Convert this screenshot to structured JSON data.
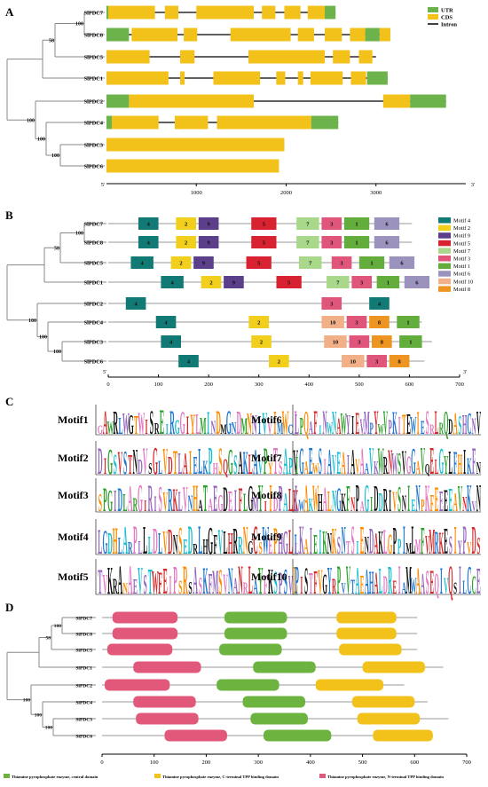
{
  "panels": {
    "A": {
      "letter": "A",
      "genes": [
        "SlPDC7",
        "SlPDC8",
        "SlPDC5",
        "SlPDC1",
        "SlPDC2",
        "SlPDC4",
        "SlPDC3",
        "SlPDC6"
      ],
      "bootstrap": [
        "100",
        "58",
        "100",
        "100",
        "100"
      ],
      "legend": [
        {
          "label": "UTR",
          "color": "#6db34b"
        },
        {
          "label": "CDS",
          "color": "#f2c21b"
        },
        {
          "label": "Intron",
          "color": "#000000"
        }
      ],
      "axis": {
        "min": 0,
        "max": 4000,
        "ticks": [
          "0",
          "1000",
          "2000",
          "3000",
          "4000"
        ],
        "end5": "5'",
        "end3": "3'"
      },
      "structures": [
        {
          "span": [
            0,
            2550
          ],
          "utr": [
            [
              0,
              20
            ],
            [
              2430,
              2550
            ]
          ],
          "cds": [
            [
              20,
              540
            ],
            [
              650,
              800
            ],
            [
              1000,
              1640
            ],
            [
              1730,
              1880
            ],
            [
              1980,
              2160
            ],
            [
              2240,
              2430
            ]
          ]
        },
        {
          "span": [
            0,
            3160
          ],
          "utr": [
            [
              0,
              250
            ],
            [
              2880,
              3040
            ]
          ],
          "cds": [
            [
              280,
              790
            ],
            [
              860,
              1010
            ],
            [
              1380,
              2050
            ],
            [
              2130,
              2310
            ],
            [
              2430,
              2620
            ],
            [
              2710,
              2880
            ],
            [
              3040,
              3160
            ]
          ]
        },
        {
          "span": [
            0,
            3000
          ],
          "utr": [],
          "cds": [
            [
              0,
              480
            ],
            [
              820,
              980
            ],
            [
              1580,
              2430
            ],
            [
              2520,
              2710
            ],
            [
              2810,
              2960
            ]
          ]
        },
        {
          "span": [
            0,
            3130
          ],
          "utr": [
            [
              2900,
              3130
            ]
          ],
          "cds": [
            [
              0,
              690
            ],
            [
              820,
              870
            ],
            [
              1190,
              1710
            ],
            [
              1890,
              1990
            ],
            [
              2130,
              2190
            ],
            [
              2270,
              2630
            ],
            [
              2720,
              2890
            ]
          ]
        },
        {
          "span": [
            0,
            3780
          ],
          "utr": [
            [
              0,
              250
            ],
            [
              3380,
              3780
            ]
          ],
          "cds": [
            [
              250,
              1640
            ],
            [
              3080,
              3380
            ]
          ]
        },
        {
          "span": [
            0,
            2580
          ],
          "utr": [
            [
              0,
              60
            ],
            [
              2280,
              2580
            ]
          ],
          "cds": [
            [
              60,
              580
            ],
            [
              760,
              1130
            ],
            [
              1230,
              2280
            ]
          ]
        },
        {
          "span": [
            0,
            1980
          ],
          "utr": [],
          "cds": [
            [
              0,
              1980
            ]
          ]
        },
        {
          "span": [
            0,
            1920
          ],
          "utr": [],
          "cds": [
            [
              0,
              1920
            ]
          ]
        }
      ]
    },
    "B": {
      "letter": "B",
      "genes": [
        "SlPDC7",
        "SlPDC8",
        "SlPDC5",
        "SlPDC1",
        "SlPDC2",
        "SlPDC4",
        "SlPDC3",
        "SlPDC6"
      ],
      "bootstrap": [
        "100",
        "58",
        "100",
        "100",
        "100"
      ],
      "legend": [
        {
          "label": "Motif 4",
          "color": "#127a74"
        },
        {
          "label": "Motif 2",
          "color": "#f2cf1c"
        },
        {
          "label": "Motif 9",
          "color": "#5c3f8b"
        },
        {
          "label": "Motif 5",
          "color": "#d82232"
        },
        {
          "label": "Motif 7",
          "color": "#a9d88a"
        },
        {
          "label": "Motif 3",
          "color": "#e0567b"
        },
        {
          "label": "Motif 1",
          "color": "#63ad3c"
        },
        {
          "label": "Motif 6",
          "color": "#9b93bd"
        },
        {
          "label": "Motif 10",
          "color": "#f2b088"
        },
        {
          "label": "Motif 8",
          "color": "#ee9420"
        }
      ],
      "axis": {
        "min": 0,
        "max": 700,
        "ticks": [
          "0",
          "100",
          "200",
          "300",
          "400",
          "500",
          "600",
          "700"
        ],
        "end5": "5'",
        "end3": "3'"
      },
      "lengths": [
        605,
        605,
        605,
        610,
        560,
        625,
        645,
        630
      ],
      "motifs": [
        [
          {
            "m": "4",
            "s": 60,
            "e": 100
          },
          {
            "m": "2",
            "s": 135,
            "e": 175
          },
          {
            "m": "9",
            "s": 180,
            "e": 220
          },
          {
            "m": "5",
            "s": 285,
            "e": 335
          },
          {
            "m": "7",
            "s": 375,
            "e": 420
          },
          {
            "m": "3",
            "s": 425,
            "e": 465
          },
          {
            "m": "1",
            "s": 470,
            "e": 520
          },
          {
            "m": "6",
            "s": 530,
            "e": 580
          }
        ],
        [
          {
            "m": "4",
            "s": 60,
            "e": 100
          },
          {
            "m": "2",
            "s": 135,
            "e": 175
          },
          {
            "m": "9",
            "s": 180,
            "e": 220
          },
          {
            "m": "5",
            "s": 285,
            "e": 335
          },
          {
            "m": "7",
            "s": 375,
            "e": 420
          },
          {
            "m": "3",
            "s": 425,
            "e": 465
          },
          {
            "m": "1",
            "s": 470,
            "e": 520
          },
          {
            "m": "6",
            "s": 530,
            "e": 580
          }
        ],
        [
          {
            "m": "4",
            "s": 45,
            "e": 90
          },
          {
            "m": "2",
            "s": 125,
            "e": 165
          },
          {
            "m": "9",
            "s": 170,
            "e": 210
          },
          {
            "m": "5",
            "s": 275,
            "e": 325
          },
          {
            "m": "7",
            "s": 380,
            "e": 425
          },
          {
            "m": "3",
            "s": 445,
            "e": 485
          },
          {
            "m": "1",
            "s": 500,
            "e": 550
          },
          {
            "m": "6",
            "s": 560,
            "e": 610
          }
        ],
        [
          {
            "m": "4",
            "s": 105,
            "e": 150
          },
          {
            "m": "2",
            "s": 185,
            "e": 225
          },
          {
            "m": "9",
            "s": 230,
            "e": 270
          },
          {
            "m": "5",
            "s": 335,
            "e": 385
          },
          {
            "m": "7",
            "s": 435,
            "e": 480
          },
          {
            "m": "3",
            "s": 485,
            "e": 525
          },
          {
            "m": "1",
            "s": 535,
            "e": 580
          },
          {
            "m": "6",
            "s": 590,
            "e": 640
          }
        ],
        [
          {
            "m": "4",
            "s": 35,
            "e": 75
          },
          {
            "m": "3",
            "s": 425,
            "e": 465
          },
          {
            "m": "4",
            "s": 520,
            "e": 560
          }
        ],
        [
          {
            "m": "4",
            "s": 95,
            "e": 135
          },
          {
            "m": "2",
            "s": 280,
            "e": 320
          },
          {
            "m": "10",
            "s": 425,
            "e": 470
          },
          {
            "m": "3",
            "s": 475,
            "e": 515
          },
          {
            "m": "8",
            "s": 520,
            "e": 560
          },
          {
            "m": "1",
            "s": 575,
            "e": 620
          }
        ],
        [
          {
            "m": "4",
            "s": 105,
            "e": 145
          },
          {
            "m": "2",
            "s": 285,
            "e": 325
          },
          {
            "m": "10",
            "s": 430,
            "e": 475
          },
          {
            "m": "3",
            "s": 480,
            "e": 520
          },
          {
            "m": "8",
            "s": 525,
            "e": 565
          },
          {
            "m": "1",
            "s": 580,
            "e": 625
          }
        ],
        [
          {
            "m": "4",
            "s": 140,
            "e": 180
          },
          {
            "m": "2",
            "s": 320,
            "e": 360
          },
          {
            "m": "10",
            "s": 465,
            "e": 510
          },
          {
            "m": "3",
            "s": 515,
            "e": 555
          },
          {
            "m": "8",
            "s": 560,
            "e": 600
          }
        ]
      ]
    },
    "C": {
      "letter": "C",
      "logos": [
        {
          "label": "Motif1",
          "seq": "GAWRLWGTWISREIRGGIYLMINDMGNDMNNIVVIMWCI"
        },
        {
          "label": "Motif6",
          "seq": "LPQAFINWNAWYIEVMPYWVPKITEWIESRLRQDASHCNVP"
        },
        {
          "label": "Motif2",
          "seq": "DIGSVSTNDVSGLVDTLAIELKPHSQGSAKLAVPYTSAPVAVIASGHQYSSAQTIDRLMDAAFYA"
        },
        {
          "label": "Motif7",
          "seq": "IGAEWSIAVEAIAVAAVKWRNWSVGGAVQELGYLFHIKFNNEDGVHVFCHKG"
        },
        {
          "label": "Motif3",
          "seq": "SPGIDLARGIRISVRKLVNHATAEGDEIFLGMYIIDPALKRDAAIPPEGAVSAGHRLGAVVRSV"
        },
        {
          "label": "Motif8",
          "seq": "LWAKWHALNGKFNPAGIDDRIVSNIENPKFEEEEAVNKVNTCKELERFE"
        },
        {
          "label": "Motif4",
          "seq": "LGDHLARPLLLDLVDNSEDRLHGFVLHRRNGCSWEPHGLIGNIEGSVATAASSNVTSCINLAARYRCGIGEAI"
        },
        {
          "label": "Motif9",
          "seq": "LKAIEIKNKSNTSIENDAKLGPPIMLMFVMRKESIYPVDSPNHAFGLAYNGIVPIDSDWARVTSNEFVIMYKGA"
        },
        {
          "label": "Motif5",
          "seq": "TVKRANAEVSTWFEIPSRSASKFMSVNANRLAYFKSPSVLRHPFWGERIVRVSLVSRLKVSRSSLSYS"
        },
        {
          "label": "Motif10",
          "seq": "PISTFVGYRPVVTAEAHALDREIAMWAASEQIVQSILCCEFAVSGKRSK"
        }
      ]
    },
    "D": {
      "letter": "D",
      "genes": [
        "SlPDC7",
        "SlPDC8",
        "SlPDC5",
        "SlPDC1",
        "SlPDC2",
        "SlPDC4",
        "SlPDC3",
        "SlPDC6"
      ],
      "bootstrap": [
        "100",
        "58",
        "100",
        "100",
        "100"
      ],
      "axis": {
        "min": 0,
        "max": 700,
        "ticks": [
          "0",
          "100",
          "200",
          "300",
          "400",
          "500",
          "600",
          "700"
        ]
      },
      "lengths": [
        605,
        605,
        605,
        655,
        580,
        625,
        665,
        635
      ],
      "domains": [
        [
          {
            "d": "N",
            "s": 20,
            "e": 145
          },
          {
            "d": "C",
            "s": 235,
            "e": 355
          },
          {
            "d": "T",
            "s": 450,
            "e": 565
          }
        ],
        [
          {
            "d": "N",
            "s": 20,
            "e": 145
          },
          {
            "d": "C",
            "s": 235,
            "e": 355
          },
          {
            "d": "T",
            "s": 450,
            "e": 565
          }
        ],
        [
          {
            "d": "N",
            "s": 10,
            "e": 135
          },
          {
            "d": "C",
            "s": 225,
            "e": 345
          },
          {
            "d": "T",
            "s": 455,
            "e": 575
          }
        ],
        [
          {
            "d": "N",
            "s": 60,
            "e": 190
          },
          {
            "d": "C",
            "s": 290,
            "e": 410
          },
          {
            "d": "T",
            "s": 500,
            "e": 620
          }
        ],
        [
          {
            "d": "N",
            "s": 5,
            "e": 130
          },
          {
            "d": "C",
            "s": 220,
            "e": 340
          },
          {
            "d": "T",
            "s": 410,
            "e": 540
          }
        ],
        [
          {
            "d": "N",
            "s": 60,
            "e": 180
          },
          {
            "d": "C",
            "s": 270,
            "e": 390
          },
          {
            "d": "T",
            "s": 480,
            "e": 600
          }
        ],
        [
          {
            "d": "N",
            "s": 65,
            "e": 185
          },
          {
            "d": "C",
            "s": 285,
            "e": 395
          },
          {
            "d": "T",
            "s": 490,
            "e": 610
          }
        ],
        [
          {
            "d": "N",
            "s": 120,
            "e": 240
          },
          {
            "d": "C",
            "s": 310,
            "e": 440
          },
          {
            "d": "T",
            "s": 520,
            "e": 635
          }
        ]
      ],
      "legend": [
        {
          "key": "C",
          "label": "Thiamine pyrophosphate enzyme, central domain",
          "color": "#6db33f"
        },
        {
          "key": "T",
          "label": "Thiamine pyrophosphate enzyme, C-terminal  TPP binding domain",
          "color": "#f2c21b"
        },
        {
          "key": "N",
          "label": "Thiamine pyrophosphate enzyme, N-terminal  TPP binding domain",
          "color": "#e2587b"
        }
      ]
    }
  }
}
